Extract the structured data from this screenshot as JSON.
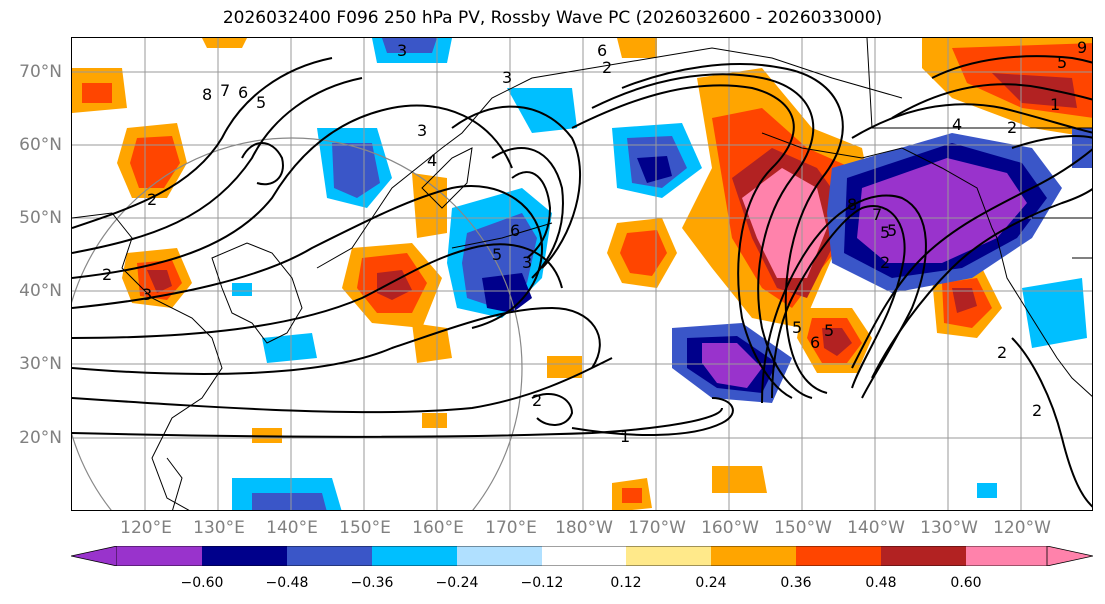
{
  "title": "2026032400 F096 250 hPa PV, Rossby Wave PC (2026032600 - 2026033000)",
  "lat_labels": [
    "70°N",
    "60°N",
    "50°N",
    "40°N",
    "30°N",
    "20°N"
  ],
  "lat_values": [
    70,
    60,
    50,
    40,
    30,
    20
  ],
  "lon_labels": [
    "120°E",
    "130°E",
    "140°E",
    "150°E",
    "160°E",
    "170°E",
    "180°W",
    "170°W",
    "160°W",
    "150°W",
    "140°W",
    "130°W",
    "120°W"
  ],
  "contour_labels": [
    "8",
    "7",
    "6",
    "5",
    "3",
    "6",
    "3",
    "6",
    "5",
    "3",
    "4",
    "3",
    "5",
    "6",
    "5",
    "2",
    "3",
    "2",
    "2",
    "5",
    "8",
    "7",
    "5",
    "2",
    "1",
    "2",
    "4",
    "5",
    "9",
    "2",
    "2",
    "1",
    "2"
  ],
  "colorbar": {
    "labels": [
      "−0.60",
      "−0.48",
      "−0.36",
      "−0.24",
      "−0.12",
      "0.12",
      "0.24",
      "0.36",
      "0.48",
      "0.60"
    ],
    "colors": [
      "#9933cc",
      "#00008b",
      "#3a56c8",
      "#00bfff",
      "#b0e0ff",
      "#ffffff",
      "#ffe98a",
      "#ffa500",
      "#ff4500",
      "#b22222",
      "#ff82ab"
    ]
  },
  "colors": {
    "purple": "#9933cc",
    "navy": "#00008b",
    "blue": "#3a56c8",
    "cyan": "#00bfff",
    "lightblue": "#b0e0ff",
    "yellow": "#ffe98a",
    "orange": "#ffa500",
    "red": "#ff4500",
    "darkred": "#b22222",
    "pink": "#ff82ab"
  }
}
